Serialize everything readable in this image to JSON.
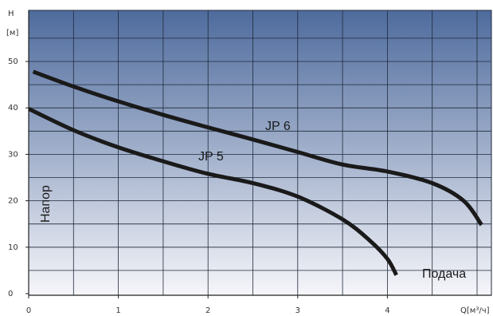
{
  "chart_data": {
    "type": "line",
    "title": "",
    "xlabel": "Q[м³/ч]",
    "ylabel_top": "H",
    "ylabel_unit": "[м]",
    "xlim": [
      0,
      5.2
    ],
    "ylim": [
      0,
      55
    ],
    "x_ticks": [
      0,
      1,
      2,
      3,
      4
    ],
    "y_ticks": [
      0,
      10,
      20,
      30,
      40,
      50
    ],
    "x_tick_labels": [
      "0",
      "1",
      "2",
      "3",
      "4"
    ],
    "y_tick_labels": [
      "0",
      "10",
      "20",
      "30",
      "40",
      "50"
    ],
    "grid": true,
    "legend": "none",
    "background_gradient": [
      "#4e6b9d",
      "#f6f6fa"
    ],
    "line_color": "#1a1a1a",
    "series": [
      {
        "name": "JP 6",
        "x": [
          0.05,
          0.5,
          1.0,
          1.5,
          2.0,
          2.5,
          3.0,
          3.5,
          4.0,
          4.5,
          4.85,
          5.05
        ],
        "y": [
          47.8,
          44.6,
          41.4,
          38.5,
          35.8,
          33.2,
          30.5,
          27.8,
          26.3,
          23.8,
          20.0,
          14.8
        ]
      },
      {
        "name": "JP 5",
        "x": [
          0.0,
          0.5,
          1.0,
          1.5,
          2.0,
          2.5,
          3.0,
          3.5,
          3.8,
          4.0,
          4.1
        ],
        "y": [
          39.8,
          35.2,
          31.5,
          28.5,
          25.8,
          23.8,
          20.9,
          16.0,
          11.5,
          7.5,
          4.0
        ]
      }
    ],
    "annotations": [
      "Напор",
      "Подача"
    ]
  }
}
